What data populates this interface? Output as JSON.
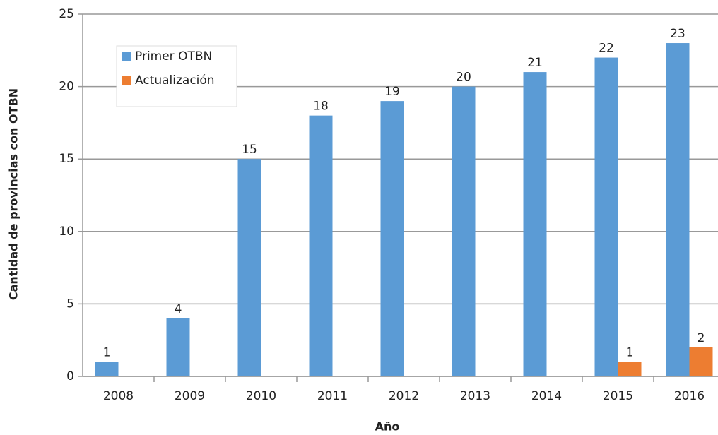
{
  "chart_data": {
    "type": "bar",
    "y_label": "Cantidad de provincias con OTBN",
    "x_label": "Año",
    "categories": [
      "2008",
      "2009",
      "2010",
      "2011",
      "2012",
      "2013",
      "2014",
      "2015",
      "2016"
    ],
    "series": [
      {
        "name": "Primer OTBN",
        "color": "#5b9bd5",
        "values": [
          1,
          4,
          15,
          18,
          19,
          20,
          21,
          22,
          23
        ]
      },
      {
        "name": "Actualización",
        "color": "#ed7d31",
        "values": [
          null,
          null,
          null,
          null,
          null,
          null,
          null,
          1,
          2
        ]
      }
    ],
    "ylim": [
      0,
      25
    ],
    "yticks": [
      0,
      5,
      10,
      15,
      20,
      25
    ],
    "grid": true,
    "legend": "upper left"
  }
}
